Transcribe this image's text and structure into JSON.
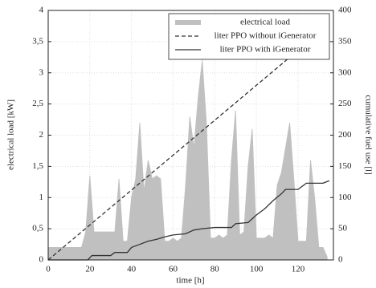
{
  "chart_data": {
    "type": "line",
    "xlabel": "time [h]",
    "ylabel": "electrical load [kW]",
    "y2label": "cumulative fuel use [l]",
    "xlim": [
      0,
      137
    ],
    "xticks": [
      0,
      20,
      40,
      60,
      80,
      100,
      120
    ],
    "ylim": [
      0,
      4
    ],
    "yticks": [
      0,
      {
        "value": 0.5,
        "label": "0,5"
      },
      1,
      {
        "value": 1.5,
        "label": "1,5"
      },
      2,
      {
        "value": 2.5,
        "label": "2,5"
      },
      3,
      {
        "value": 3.5,
        "label": "3,5"
      },
      4
    ],
    "y2lim": [
      0,
      400
    ],
    "y2ticks": [
      0,
      50,
      100,
      150,
      200,
      250,
      300,
      350,
      400
    ],
    "grid": true,
    "legend": "upper right",
    "series": [
      {
        "name": "electrical load",
        "color": "#c0c0c0",
        "kind": "area",
        "x": [
          0,
          2,
          4,
          6,
          8,
          10,
          12,
          14,
          16,
          18,
          20,
          22,
          24,
          26,
          28,
          30,
          32,
          34,
          36,
          38,
          40,
          42,
          44,
          46,
          48,
          50,
          52,
          54,
          56,
          58,
          60,
          62,
          64,
          66,
          68,
          70,
          72,
          74,
          76,
          78,
          80,
          82,
          84,
          86,
          88,
          90,
          92,
          94,
          96,
          98,
          100,
          102,
          104,
          106,
          108,
          110,
          112,
          114,
          116,
          118,
          120,
          122,
          124,
          126,
          128,
          130,
          132,
          134
        ],
        "values": [
          0.2,
          0.2,
          0.2,
          0.2,
          0.2,
          0.2,
          0.2,
          0.2,
          0.2,
          0.45,
          1.35,
          0.45,
          0.45,
          0.45,
          0.45,
          0.45,
          0.45,
          1.3,
          0.3,
          0.3,
          1.0,
          1.3,
          2.2,
          1.1,
          1.6,
          1.3,
          1.35,
          1.3,
          0.3,
          0.3,
          0.35,
          0.3,
          0.35,
          1.2,
          2.3,
          1.8,
          2.6,
          3.2,
          2.2,
          0.35,
          0.35,
          0.4,
          0.35,
          0.4,
          1.6,
          2.4,
          0.4,
          0.45,
          1.5,
          2.1,
          0.35,
          0.35,
          0.35,
          0.4,
          0.35,
          1.2,
          1.4,
          1.8,
          2.2,
          1.3,
          0.3,
          0.3,
          0.3,
          1.6,
          1.0,
          0.2,
          0.2,
          0.05
        ]
      },
      {
        "name": "liter PPO without iGenerator",
        "color": "#333333",
        "linestyle": "dashed",
        "axis": "y2",
        "x": [
          0,
          135
        ],
        "values": [
          0,
          378
        ]
      },
      {
        "name": "liter PPO with iGenerator",
        "color": "#333333",
        "linestyle": "solid",
        "axis": "y2",
        "x": [
          0,
          19,
          21,
          30,
          32,
          38,
          40,
          44,
          48,
          52,
          56,
          60,
          66,
          70,
          74,
          80,
          88,
          90,
          96,
          100,
          104,
          108,
          112,
          114,
          120,
          124,
          132,
          135
        ],
        "values": [
          0,
          0,
          7,
          7,
          12,
          12,
          20,
          25,
          30,
          33,
          37,
          40,
          42,
          48,
          50,
          52,
          52,
          58,
          60,
          72,
          82,
          95,
          106,
          113,
          113,
          123,
          123,
          127
        ]
      }
    ]
  }
}
